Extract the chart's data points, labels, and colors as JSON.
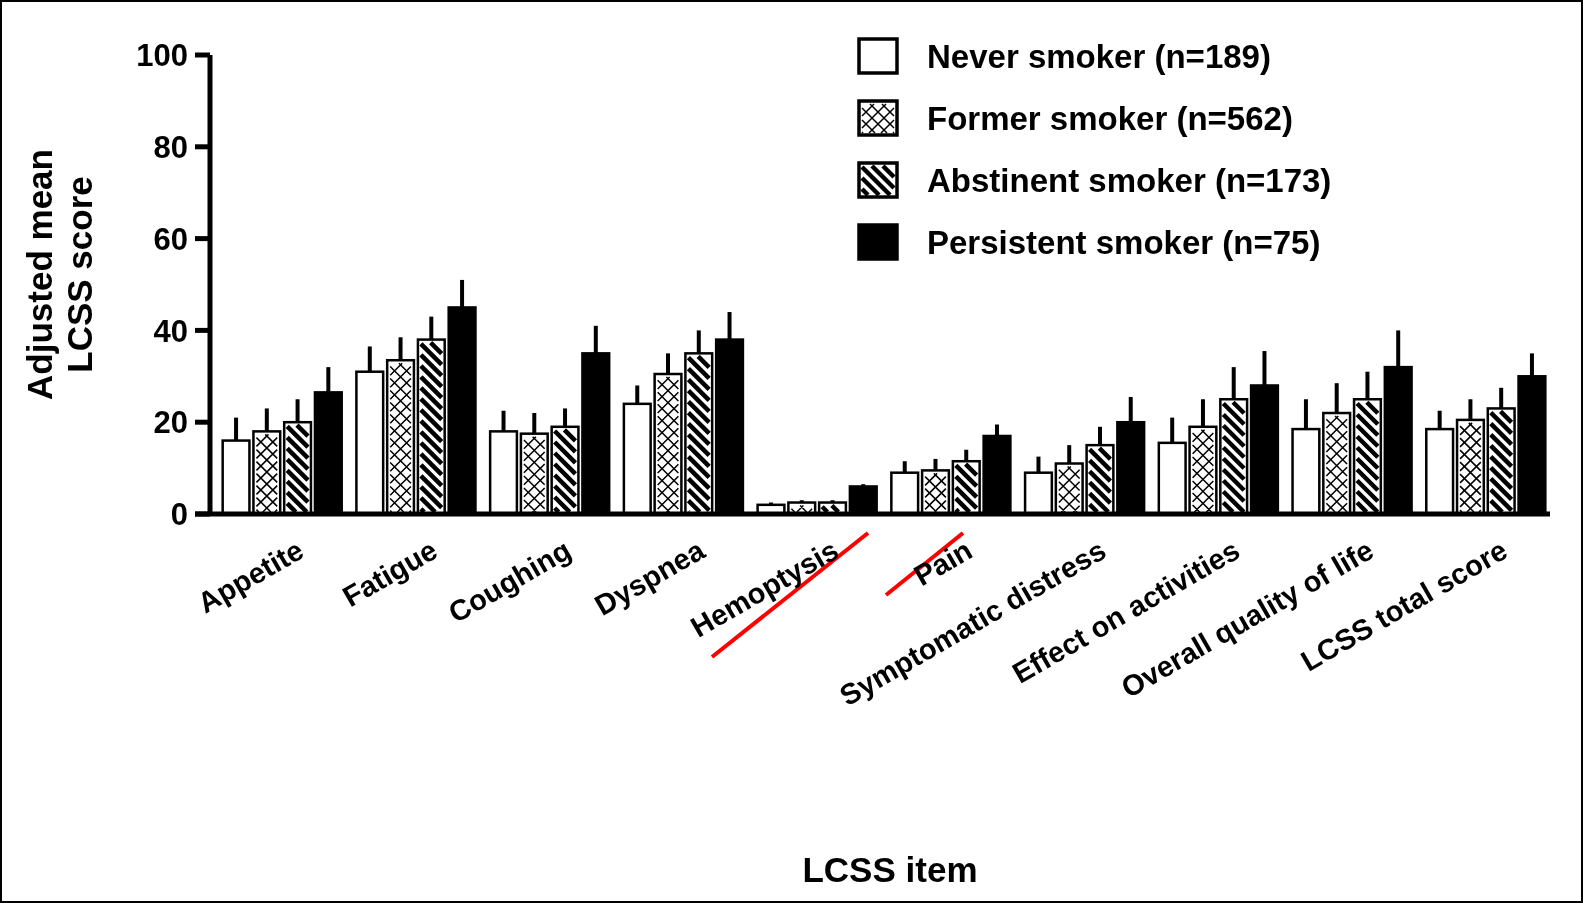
{
  "chart_data": {
    "type": "bar",
    "xlabel": "LCSS item",
    "ylabel": "Adjusted mean LCSS score",
    "categories": [
      "Appetite",
      "Fatigue",
      "Coughing",
      "Dyspnea",
      "Hemoptysis",
      "Pain",
      "Symptomatic distress",
      "Effect on activities",
      "Overall quality of life",
      "LCSS total score"
    ],
    "series": [
      {
        "name": "Never smoker (n=189)",
        "color": "#ffffff",
        "values": [
          16,
          31,
          18,
          24,
          2,
          9,
          9,
          15.5,
          18.5,
          18.5
        ],
        "errors": [
          [
            16,
            21
          ],
          [
            31,
            36.5
          ],
          [
            18,
            22.5
          ],
          [
            24,
            28
          ],
          [
            2,
            2.5
          ],
          [
            9,
            11.5
          ],
          [
            9,
            12.5
          ],
          [
            15.5,
            21
          ],
          [
            18.5,
            25
          ],
          [
            18.5,
            22.5
          ]
        ]
      },
      {
        "name": "Former smoker (n=562)",
        "color": "#ffffff",
        "values": [
          18,
          33.5,
          17.5,
          30.5,
          2.5,
          9.5,
          11,
          19,
          22,
          20.5
        ],
        "errors": [
          [
            18,
            23
          ],
          [
            33.5,
            38.5
          ],
          [
            17.5,
            22
          ],
          [
            30.5,
            35
          ],
          [
            2.5,
            3
          ],
          [
            9.5,
            12
          ],
          [
            11,
            15
          ],
          [
            19,
            25
          ],
          [
            22,
            28.5
          ],
          [
            20.5,
            25
          ]
        ]
      },
      {
        "name": "Abstinent smoker (n=173)",
        "color": "#ffffff",
        "values": [
          20,
          38,
          19,
          35,
          2.5,
          11.5,
          15,
          25,
          25,
          23
        ],
        "errors": [
          [
            20,
            25
          ],
          [
            38,
            43
          ],
          [
            19,
            23
          ],
          [
            35,
            40
          ],
          [
            2.5,
            3
          ],
          [
            11.5,
            14
          ],
          [
            15,
            19
          ],
          [
            25,
            32
          ],
          [
            25,
            31
          ],
          [
            23,
            27.5
          ]
        ]
      },
      {
        "name": "Persistent smoker (n=75)",
        "color": "#000000",
        "values": [
          26.5,
          45,
          35,
          38,
          6,
          17,
          20,
          28,
          32,
          30
        ],
        "errors": [
          [
            26.5,
            32
          ],
          [
            45,
            51
          ],
          [
            35,
            41
          ],
          [
            38,
            44
          ],
          [
            6,
            6.5
          ],
          [
            17,
            19.5
          ],
          [
            20,
            25.5
          ],
          [
            28,
            35.5
          ],
          [
            32,
            40
          ],
          [
            30,
            35
          ]
        ]
      }
    ],
    "ylim": [
      0,
      100
    ],
    "yticks": [
      0,
      20,
      40,
      60,
      80,
      100
    ],
    "grid": false,
    "legend": "top right"
  }
}
